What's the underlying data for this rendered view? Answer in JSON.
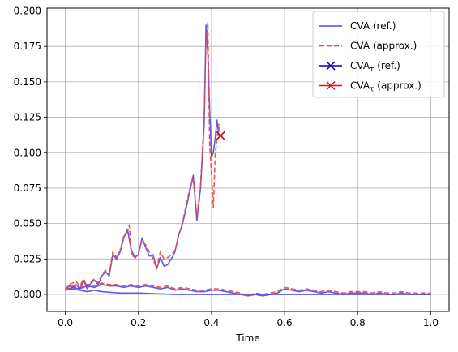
{
  "chart_data": {
    "type": "line",
    "title": "",
    "xlabel": "Time",
    "ylabel": "",
    "xlim": [
      -0.05,
      1.05
    ],
    "ylim": [
      -0.012,
      0.202
    ],
    "xticks": [
      0.0,
      0.2,
      0.4,
      0.6,
      0.8,
      1.0
    ],
    "xtick_labels": [
      "0.0",
      "0.2",
      "0.4",
      "0.6",
      "0.8",
      "1.0"
    ],
    "yticks": [
      0.0,
      0.025,
      0.05,
      0.075,
      0.1,
      0.125,
      0.15,
      0.175,
      0.2
    ],
    "ytick_labels": [
      "0.000",
      "0.025",
      "0.050",
      "0.075",
      "0.100",
      "0.125",
      "0.150",
      "0.175",
      "0.200"
    ],
    "grid": true,
    "legend_position": "top-right",
    "legend": [
      {
        "label": "CVA (ref.)",
        "style": "solid"
      },
      {
        "label": "CVA (approx.)",
        "style": "dashed"
      },
      {
        "label": "CVA",
        "sub": "τ",
        "suffix": " (ref.)",
        "style": "x-marker"
      },
      {
        "label": "CVA",
        "sub": "τ",
        "suffix": " (approx.)",
        "style": "x-marker"
      }
    ],
    "colors": {
      "ref": "#4a4ae8",
      "approx": "#ee4444",
      "tau_ref": "#0000cc",
      "tau_approx": "#dd1111",
      "grid": "#b0b0b0"
    },
    "series": [
      {
        "name": "CVA (ref.)",
        "role": "ref",
        "paths": [
          {
            "x": [
              0.0,
              0.01,
              0.02,
              0.03,
              0.04,
              0.05,
              0.06,
              0.07,
              0.08,
              0.09,
              0.1,
              0.11,
              0.12,
              0.13,
              0.14,
              0.15,
              0.16,
              0.17,
              0.18,
              0.19,
              0.2,
              0.21,
              0.22,
              0.23,
              0.24,
              0.25,
              0.26,
              0.27,
              0.28,
              0.29,
              0.3,
              0.31,
              0.32,
              0.33,
              0.34,
              0.35,
              0.36,
              0.37,
              0.38,
              0.385,
              0.39,
              0.395,
              0.4,
              0.405,
              0.41,
              0.415,
              0.42,
              0.425,
              0.43
            ],
            "y": [
              0.003,
              0.006,
              0.005,
              0.007,
              0.004,
              0.01,
              0.004,
              0.008,
              0.01,
              0.007,
              0.013,
              0.016,
              0.013,
              0.028,
              0.025,
              0.03,
              0.04,
              0.046,
              0.032,
              0.026,
              0.028,
              0.04,
              0.033,
              0.027,
              0.028,
              0.018,
              0.026,
              0.02,
              0.021,
              0.025,
              0.03,
              0.042,
              0.049,
              0.06,
              0.072,
              0.084,
              0.052,
              0.075,
              0.12,
              0.19,
              0.17,
              0.13,
              0.097,
              0.1,
              0.11,
              0.123,
              0.112,
              0.112,
              0.112
            ]
          },
          {
            "x": [
              0.0,
              0.02,
              0.04,
              0.06,
              0.08,
              0.1,
              0.12,
              0.14,
              0.16,
              0.18,
              0.2,
              0.22,
              0.24,
              0.26,
              0.28,
              0.3,
              0.32,
              0.34,
              0.36,
              0.38,
              0.4,
              0.42,
              0.44,
              0.46,
              0.48,
              0.5,
              0.52,
              0.54,
              0.56,
              0.58,
              0.6,
              0.62,
              0.64,
              0.66,
              0.68,
              0.7,
              0.72,
              0.74,
              0.76,
              0.78,
              0.8,
              0.82,
              0.84,
              0.86,
              0.88,
              0.9,
              0.92,
              0.94,
              0.96,
              0.98,
              1.0
            ],
            "y": [
              0.003,
              0.005,
              0.004,
              0.006,
              0.005,
              0.007,
              0.006,
              0.006,
              0.005,
              0.006,
              0.005,
              0.006,
              0.005,
              0.004,
              0.005,
              0.003,
              0.004,
              0.003,
              0.002,
              0.002,
              0.003,
              0.003,
              0.002,
              0.001,
              0.0,
              -0.001,
              0.0,
              -0.001,
              0.0,
              0.001,
              0.004,
              0.003,
              0.002,
              0.003,
              0.002,
              0.001,
              0.002,
              0.001,
              0.0,
              0.001,
              0.001,
              0.001,
              0.0,
              0.001,
              0.0,
              0.0,
              0.001,
              0.0,
              0.0,
              0.0,
              0.0
            ]
          },
          {
            "x": [
              0.0,
              0.02,
              0.04,
              0.06,
              0.08,
              0.1,
              0.15,
              0.2,
              0.3,
              0.4,
              0.5,
              0.6,
              0.7,
              0.8,
              0.9,
              1.0
            ],
            "y": [
              0.003,
              0.004,
              0.003,
              0.002,
              0.003,
              0.002,
              0.001,
              0.001,
              0.0,
              0.0,
              0.0,
              0.0,
              0.0,
              0.0,
              0.0,
              0.0
            ]
          }
        ]
      },
      {
        "name": "CVA (approx.)",
        "role": "approx",
        "paths": [
          {
            "x": [
              0.0,
              0.01,
              0.02,
              0.03,
              0.04,
              0.05,
              0.06,
              0.07,
              0.08,
              0.09,
              0.1,
              0.11,
              0.12,
              0.13,
              0.14,
              0.15,
              0.16,
              0.17,
              0.175,
              0.18,
              0.19,
              0.2,
              0.21,
              0.22,
              0.23,
              0.24,
              0.25,
              0.26,
              0.27,
              0.28,
              0.29,
              0.3,
              0.31,
              0.32,
              0.33,
              0.34,
              0.35,
              0.36,
              0.37,
              0.38,
              0.385,
              0.39,
              0.395,
              0.4,
              0.405,
              0.41,
              0.415,
              0.42,
              0.425
            ],
            "y": [
              0.003,
              0.007,
              0.008,
              0.009,
              0.006,
              0.011,
              0.005,
              0.009,
              0.011,
              0.008,
              0.014,
              0.017,
              0.014,
              0.03,
              0.026,
              0.031,
              0.041,
              0.044,
              0.049,
              0.03,
              0.025,
              0.03,
              0.038,
              0.035,
              0.03,
              0.025,
              0.018,
              0.03,
              0.025,
              0.026,
              0.028,
              0.031,
              0.041,
              0.05,
              0.062,
              0.074,
              0.082,
              0.055,
              0.077,
              0.125,
              0.178,
              0.192,
              0.105,
              0.085,
              0.061,
              0.098,
              0.11,
              0.12,
              0.112
            ]
          },
          {
            "x": [
              0.0,
              0.02,
              0.04,
              0.06,
              0.08,
              0.1,
              0.12,
              0.14,
              0.16,
              0.18,
              0.2,
              0.22,
              0.24,
              0.26,
              0.28,
              0.3,
              0.32,
              0.34,
              0.36,
              0.38,
              0.4,
              0.42,
              0.44,
              0.46,
              0.48,
              0.5,
              0.52,
              0.54,
              0.56,
              0.58,
              0.6,
              0.62,
              0.64,
              0.66,
              0.68,
              0.7,
              0.72,
              0.74,
              0.76,
              0.78,
              0.8,
              0.82,
              0.84,
              0.86,
              0.88,
              0.9,
              0.92,
              0.94,
              0.96,
              0.98,
              1.0
            ],
            "y": [
              0.003,
              0.006,
              0.005,
              0.007,
              0.006,
              0.008,
              0.007,
              0.007,
              0.006,
              0.007,
              0.006,
              0.007,
              0.006,
              0.005,
              0.006,
              0.004,
              0.005,
              0.004,
              0.003,
              0.003,
              0.004,
              0.004,
              0.003,
              0.002,
              0.001,
              -0.001,
              0.001,
              0.0,
              0.001,
              0.002,
              0.005,
              0.004,
              0.003,
              0.004,
              0.003,
              0.002,
              0.003,
              0.002,
              0.001,
              0.002,
              0.002,
              0.002,
              0.001,
              0.002,
              0.001,
              0.001,
              0.002,
              0.001,
              0.001,
              0.001,
              0.001
            ]
          }
        ]
      },
      {
        "name": "CVA_τ (ref.)",
        "role": "tau_ref",
        "points": [
          {
            "x": 0.425,
            "y": 0.112
          }
        ]
      },
      {
        "name": "CVA_τ (approx.)",
        "role": "tau_approx",
        "points": [
          {
            "x": 0.425,
            "y": 0.112
          }
        ]
      }
    ]
  }
}
